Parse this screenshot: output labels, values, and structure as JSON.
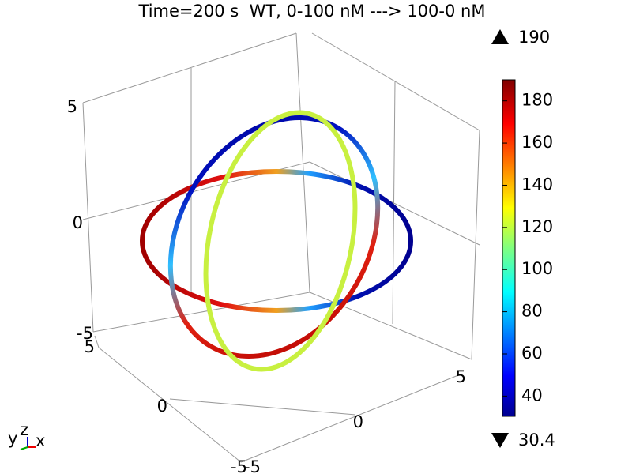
{
  "chart_data": {
    "type": "surface3d",
    "title": "Time=200 s  WT, 0-100 nM ---> 100-0 nM",
    "colorbar": {
      "min": 30.4,
      "max": 190,
      "ticks": [
        40,
        60,
        80,
        100,
        120,
        140,
        160,
        180
      ]
    },
    "zticks": [
      -5,
      0,
      5
    ],
    "yticks": [
      -5,
      0,
      5
    ],
    "xticks": [
      -5,
      0,
      5
    ],
    "axis_labels": {
      "x": "x",
      "y": "y",
      "z": "z"
    }
  }
}
